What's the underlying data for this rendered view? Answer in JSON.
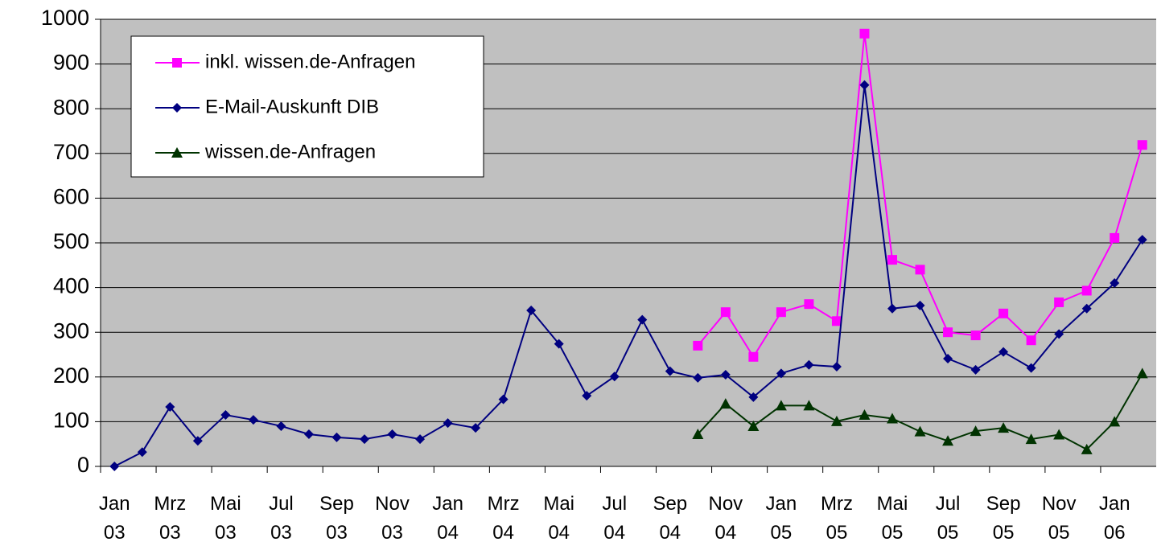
{
  "chart_data": {
    "type": "line",
    "categories": [
      [
        "Jan",
        "03"
      ],
      null,
      [
        "Mrz",
        "03"
      ],
      null,
      [
        "Mai",
        "03"
      ],
      null,
      [
        "Jul",
        "03"
      ],
      null,
      [
        "Sep",
        "03"
      ],
      null,
      [
        "Nov",
        "03"
      ],
      null,
      [
        "Jan",
        "04"
      ],
      null,
      [
        "Mrz",
        "04"
      ],
      null,
      [
        "Mai",
        "04"
      ],
      null,
      [
        "Jul",
        "04"
      ],
      null,
      [
        "Sep",
        "04"
      ],
      null,
      [
        "Nov",
        "04"
      ],
      null,
      [
        "Jan",
        "05"
      ],
      null,
      [
        "Mrz",
        "05"
      ],
      null,
      [
        "Mai",
        "05"
      ],
      null,
      [
        "Jul",
        "05"
      ],
      null,
      [
        "Sep",
        "05"
      ],
      null,
      [
        "Nov",
        "05"
      ],
      null,
      [
        "Jan",
        "06"
      ],
      null
    ],
    "series": [
      {
        "name": "inkl. wissen.de-Anfragen",
        "color": "#ff00ff",
        "marker": "square",
        "values": [
          null,
          null,
          null,
          null,
          null,
          null,
          null,
          null,
          null,
          null,
          null,
          null,
          null,
          null,
          null,
          null,
          null,
          null,
          null,
          null,
          null,
          270,
          345,
          245,
          345,
          363,
          325,
          968,
          462,
          440,
          300,
          293,
          342,
          282,
          367,
          393,
          511,
          719
        ]
      },
      {
        "name": "E-Mail-Auskunft DIB",
        "color": "#000080",
        "marker": "diamond",
        "values": [
          0,
          32,
          133,
          57,
          115,
          104,
          90,
          72,
          65,
          61,
          72,
          61,
          97,
          86,
          150,
          349,
          274,
          158,
          201,
          328,
          213,
          198,
          205,
          155,
          208,
          227,
          223,
          853,
          353,
          360,
          241,
          216,
          256,
          220,
          296,
          353,
          410,
          507
        ]
      },
      {
        "name": "wissen.de-Anfragen",
        "color": "#003300",
        "marker": "triangle",
        "values": [
          null,
          null,
          null,
          null,
          null,
          null,
          null,
          null,
          null,
          null,
          null,
          null,
          null,
          null,
          null,
          null,
          null,
          null,
          null,
          null,
          null,
          72,
          140,
          90,
          136,
          136,
          101,
          115,
          107,
          78,
          57,
          79,
          86,
          61,
          71,
          38,
          100,
          208
        ]
      }
    ],
    "ylim": [
      0,
      1000
    ],
    "yticks": [
      0,
      100,
      200,
      300,
      400,
      500,
      600,
      700,
      800,
      900,
      1000
    ],
    "grid": true,
    "legend": "upper left"
  }
}
